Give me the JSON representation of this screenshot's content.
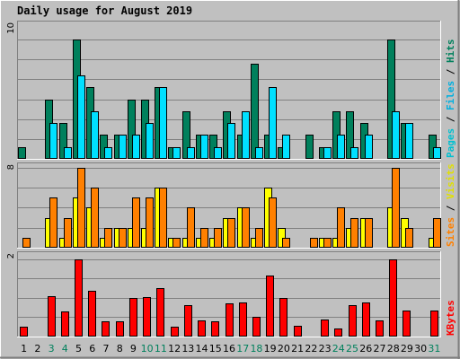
{
  "chart_data": {
    "type": "bar",
    "title": "Daily usage for August 2019",
    "categories": [
      "1",
      "2",
      "3",
      "4",
      "5",
      "6",
      "7",
      "8",
      "9",
      "10",
      "11",
      "12",
      "13",
      "14",
      "15",
      "16",
      "17",
      "18",
      "19",
      "20",
      "21",
      "22",
      "23",
      "24",
      "25",
      "26",
      "27",
      "28",
      "29",
      "30",
      "31"
    ],
    "weekend_days": [
      "3",
      "4",
      "10",
      "11",
      "17",
      "18",
      "24",
      "25",
      "31"
    ],
    "colors": {
      "background": "#c0c0c0",
      "plot_bg": "#c0c0c0",
      "title": "#0000c0",
      "hits": "#00805c",
      "files": "#00e0ff",
      "pages": "#00c0d0",
      "visits": "#ff8000",
      "sites": "#ffff00",
      "kbytes": "#ff0000",
      "weekend_label": "#00805c",
      "weekday_label": "#000000"
    },
    "panels": [
      {
        "ymax_label": "10",
        "ylim": [
          0,
          10
        ],
        "label_parts": [
          {
            "text": "Pages",
            "color": "#00c0d0"
          },
          {
            "text": " / ",
            "color": "#000000"
          },
          {
            "text": "Files",
            "color": "#00b0e0"
          },
          {
            "text": " / ",
            "color": "#000000"
          },
          {
            "text": "Hits",
            "color": "#00805c"
          }
        ],
        "series": [
          {
            "name": "Hits",
            "color": "#00805c",
            "values": [
              1,
              0,
              5,
              3,
              10,
              6,
              2,
              2,
              5,
              5,
              6,
              1,
              4,
              2,
              2,
              4,
              2,
              8,
              2,
              1,
              0,
              2,
              1,
              4,
              4,
              3,
              0,
              10,
              3,
              0,
              2
            ]
          },
          {
            "name": "Files",
            "color": "#00e0ff",
            "values": [
              0,
              0,
              3,
              1,
              7,
              4,
              1,
              2,
              2,
              3,
              6,
              1,
              1,
              2,
              1,
              3,
              4,
              1,
              6,
              2,
              0,
              0,
              1,
              2,
              1,
              2,
              0,
              4,
              3,
              0,
              1
            ]
          }
        ]
      },
      {
        "ymax_label": "8",
        "ylim": [
          0,
          8
        ],
        "label_parts": [
          {
            "text": "Sites",
            "color": "#ff8000"
          },
          {
            "text": " / ",
            "color": "#000000"
          },
          {
            "text": "Visits",
            "color": "#e0e000"
          }
        ],
        "series": [
          {
            "name": "Sites",
            "color": "#ffff00",
            "values": [
              0,
              0,
              3,
              1,
              5,
              4,
              1,
              2,
              2,
              2,
              6,
              1,
              1,
              1,
              1,
              3,
              4,
              1,
              6,
              2,
              0,
              0,
              1,
              1,
              2,
              3,
              0,
              4,
              3,
              0,
              1
            ]
          },
          {
            "name": "Visits",
            "color": "#ff8000",
            "values": [
              1,
              0,
              5,
              3,
              8,
              6,
              2,
              2,
              5,
              5,
              6,
              1,
              4,
              2,
              2,
              3,
              4,
              2,
              5,
              1,
              0,
              1,
              1,
              4,
              3,
              3,
              0,
              8,
              2,
              0,
              3
            ]
          }
        ]
      },
      {
        "ymax_label": "2",
        "ylim": [
          0,
          2
        ],
        "label_parts": [
          {
            "text": "KBytes",
            "color": "#ff0000"
          }
        ],
        "series": [
          {
            "name": "KBytes",
            "color": "#ff0000",
            "values": [
              0.25,
              0,
              1.05,
              0.65,
              2.0,
              1.18,
              0.4,
              0.4,
              1.0,
              1.02,
              1.25,
              0.25,
              0.82,
              0.42,
              0.4,
              0.85,
              0.87,
              0.5,
              1.57,
              1.0,
              0.27,
              0,
              0.45,
              0.2,
              0.8,
              0.88,
              0.42,
              2.0,
              0.68,
              0,
              0.68
            ]
          }
        ]
      }
    ]
  }
}
